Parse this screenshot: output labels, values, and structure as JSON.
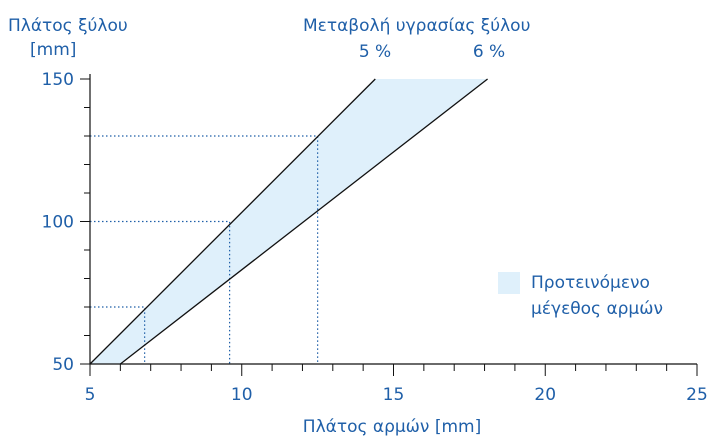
{
  "chart_data": {
    "type": "line",
    "ylabel_line1": "Πλάτος ξύλου",
    "ylabel_line2": "[mm]",
    "xlabel": "Πλάτος αρμών [mm]",
    "series_header": "Μεταβολή υγρασίας ξύλου",
    "xlim": [
      5,
      25
    ],
    "ylim": [
      50,
      150
    ],
    "x_ticks": [
      5,
      10,
      15,
      20,
      25
    ],
    "y_ticks": [
      50,
      100,
      150
    ],
    "grid": false,
    "series": [
      {
        "name": "5 %",
        "x": [
          5,
          14.4
        ],
        "y": [
          50,
          150
        ]
      },
      {
        "name": "6 %",
        "x": [
          6,
          18.1
        ],
        "y": [
          50,
          150
        ]
      }
    ],
    "reference_lines": [
      {
        "x": 6.8,
        "y": 70
      },
      {
        "x": 9.6,
        "y": 100
      },
      {
        "x": 12.5,
        "y": 130
      }
    ],
    "fill_between": {
      "colors_hex": "#dff0fb"
    },
    "legend": {
      "label_line1": "Προτεινόμενο",
      "label_line2": "μέγεθος αρμών",
      "position": "right"
    },
    "colors": {
      "text": "#1f5fa8",
      "axis": "#111111",
      "fill": "#dff0fb",
      "reference": "#1f5fa8"
    }
  }
}
